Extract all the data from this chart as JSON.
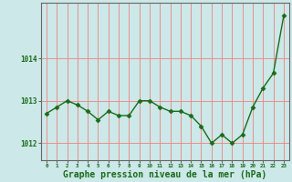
{
  "x": [
    0,
    1,
    2,
    3,
    4,
    5,
    6,
    7,
    8,
    9,
    10,
    11,
    12,
    13,
    14,
    15,
    16,
    17,
    18,
    19,
    20,
    21,
    22,
    23
  ],
  "y": [
    1012.7,
    1012.85,
    1013.0,
    1012.9,
    1012.75,
    1012.55,
    1012.75,
    1012.65,
    1012.65,
    1013.0,
    1013.0,
    1012.85,
    1012.75,
    1012.75,
    1012.65,
    1012.4,
    1012.0,
    1012.2,
    1012.0,
    1012.2,
    1012.85,
    1013.3,
    1013.65,
    1015.0
  ],
  "line_color": "#1a6b1a",
  "marker": "D",
  "marker_size": 2.5,
  "bg_color": "#cce8e8",
  "grid_color": "#f08080",
  "xlabel": "Graphe pression niveau de la mer (hPa)",
  "xlabel_fontsize": 7,
  "yticks": [
    1012,
    1013,
    1014
  ],
  "ylim": [
    1011.6,
    1015.3
  ],
  "xlim": [
    -0.5,
    23.5
  ],
  "tick_color": "#1a6b1a",
  "spine_color": "#666666"
}
